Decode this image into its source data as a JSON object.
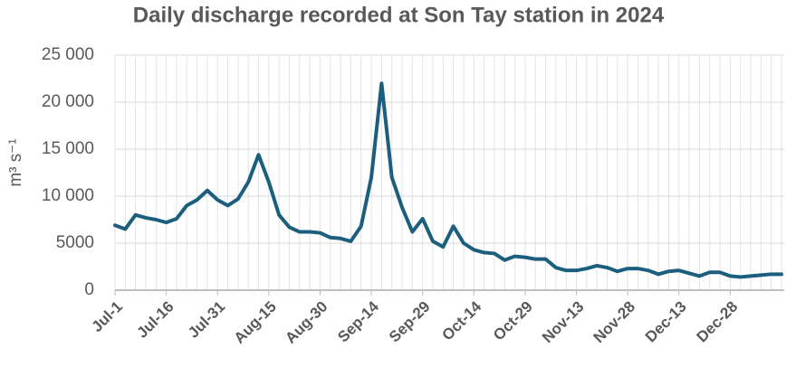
{
  "chart_data": {
    "type": "line",
    "title": "Daily discharge recorded at Son Tay station in 2024",
    "y_label": "m³ s⁻¹",
    "categories": [
      "Jul-1",
      null,
      null,
      null,
      null,
      "Jul-16",
      null,
      null,
      null,
      null,
      "Jul-31",
      null,
      null,
      null,
      null,
      "Aug-15",
      null,
      null,
      null,
      null,
      "Aug-30",
      null,
      null,
      null,
      null,
      "Sep-14",
      null,
      null,
      null,
      null,
      "Sep-29",
      null,
      null,
      null,
      null,
      "Oct-14",
      null,
      null,
      null,
      null,
      "Oct-29",
      null,
      null,
      null,
      null,
      "Nov-13",
      null,
      null,
      null,
      null,
      "Nov-28",
      null,
      null,
      null,
      null,
      "Dec-13",
      null,
      null,
      null,
      null,
      "Dec-28",
      null,
      null,
      null,
      null,
      null
    ],
    "values": [
      6900,
      6500,
      8000,
      7700,
      7500,
      7200,
      7600,
      9000,
      9600,
      10600,
      9600,
      9000,
      9700,
      11500,
      14400,
      11500,
      8000,
      6700,
      6200,
      6200,
      6100,
      5600,
      5500,
      5200,
      6800,
      12000,
      22000,
      12000,
      8800,
      6200,
      7600,
      5200,
      4600,
      6800,
      5000,
      4300,
      4000,
      3900,
      3200,
      3600,
      3500,
      3300,
      3300,
      2400,
      2100,
      2100,
      2300,
      2600,
      2400,
      2000,
      2300,
      2300,
      2100,
      1700,
      2000,
      2100,
      1800,
      1500,
      1900,
      1900,
      1500,
      1400,
      1500,
      1600,
      1700,
      1700
    ],
    "color": "#1b5e7e",
    "ylim": [
      0,
      25000
    ],
    "yticks": [
      0,
      5000,
      {
        "value": 10000,
        "label": "10 000"
      },
      {
        "value": 15000,
        "label": "15 000"
      },
      {
        "value": 20000,
        "label": "20 000"
      },
      {
        "value": 25000,
        "label": "25 000"
      }
    ],
    "grid": true
  }
}
